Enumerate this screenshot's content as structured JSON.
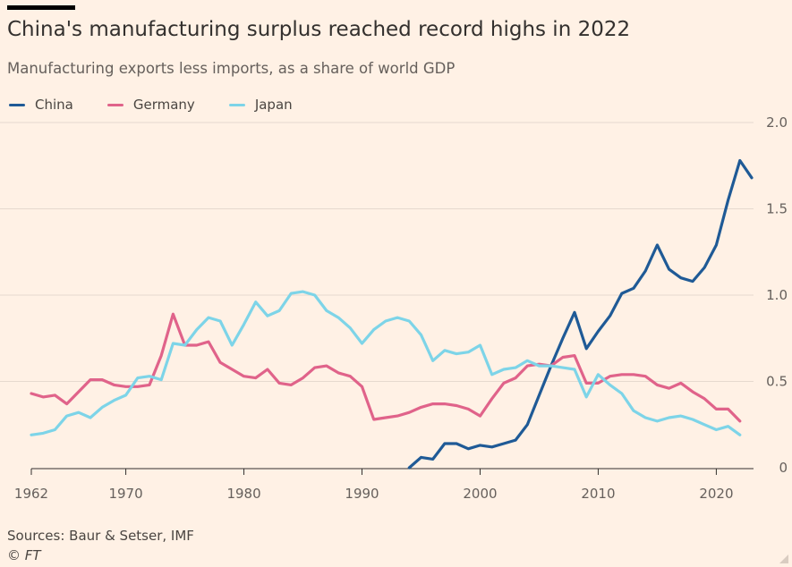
{
  "header": {
    "title": "China's manufacturing surplus reached record highs in 2022",
    "subtitle": "Manufacturing exports less imports, as a share of world GDP"
  },
  "footer": {
    "sources": "Sources: Baur & Setser, IMF",
    "credit": "© FT"
  },
  "colors": {
    "background": "#FFF1E5",
    "grid": "#E6D9CE",
    "axis": "#33302E",
    "china": "#1F5A96",
    "germany": "#E0638A",
    "japan": "#7DD4E8"
  },
  "chart_data": {
    "type": "line",
    "title": "China's manufacturing surplus reached record highs in 2022",
    "subtitle": "Manufacturing exports less imports, as a share of world GDP",
    "xlabel": "",
    "ylabel": "",
    "xlim": [
      1962,
      2023
    ],
    "ylim": [
      0,
      2.0
    ],
    "x_ticks": [
      1962,
      1970,
      1980,
      1990,
      2000,
      2010,
      2020
    ],
    "x_tick_labels": [
      "1962",
      "1970",
      "1980",
      "1990",
      "2000",
      "2010",
      "2020"
    ],
    "y_ticks": [
      0,
      0.5,
      1.0,
      1.5,
      2.0
    ],
    "y_tick_labels": [
      "0",
      "0.5",
      "1.0",
      "1.5",
      "2.0"
    ],
    "y_axis_side": "right",
    "grid": "horizontal",
    "legend": "top-left",
    "series": [
      {
        "name": "China",
        "color": "#1F5A96",
        "x": [
          1994,
          1995,
          1996,
          1997,
          1998,
          1999,
          2000,
          2001,
          2002,
          2003,
          2004,
          2005,
          2006,
          2007,
          2008,
          2009,
          2010,
          2011,
          2012,
          2013,
          2014,
          2015,
          2016,
          2017,
          2018,
          2019,
          2020,
          2021,
          2022,
          2023
        ],
        "values": [
          0.0,
          0.06,
          0.05,
          0.14,
          0.14,
          0.11,
          0.13,
          0.12,
          0.14,
          0.16,
          0.25,
          0.42,
          0.59,
          0.75,
          0.9,
          0.69,
          0.79,
          0.88,
          1.01,
          1.04,
          1.14,
          1.29,
          1.15,
          1.1,
          1.08,
          1.16,
          1.29,
          1.55,
          1.78,
          1.68
        ]
      },
      {
        "name": "Germany",
        "color": "#E0638A",
        "x": [
          1962,
          1963,
          1964,
          1965,
          1966,
          1967,
          1968,
          1969,
          1970,
          1971,
          1972,
          1973,
          1974,
          1975,
          1976,
          1977,
          1978,
          1979,
          1980,
          1981,
          1982,
          1983,
          1984,
          1985,
          1986,
          1987,
          1988,
          1989,
          1990,
          1991,
          1992,
          1993,
          1994,
          1995,
          1996,
          1997,
          1998,
          1999,
          2000,
          2001,
          2002,
          2003,
          2004,
          2005,
          2006,
          2007,
          2008,
          2009,
          2010,
          2011,
          2012,
          2013,
          2014,
          2015,
          2016,
          2017,
          2018,
          2019,
          2020,
          2021,
          2022
        ],
        "values": [
          0.43,
          0.41,
          0.42,
          0.37,
          0.44,
          0.51,
          0.51,
          0.48,
          0.47,
          0.47,
          0.48,
          0.65,
          0.89,
          0.71,
          0.71,
          0.73,
          0.61,
          0.57,
          0.53,
          0.52,
          0.57,
          0.49,
          0.48,
          0.52,
          0.58,
          0.59,
          0.55,
          0.53,
          0.47,
          0.28,
          0.29,
          0.3,
          0.32,
          0.35,
          0.37,
          0.37,
          0.36,
          0.34,
          0.3,
          0.4,
          0.49,
          0.52,
          0.59,
          0.6,
          0.59,
          0.64,
          0.65,
          0.49,
          0.49,
          0.53,
          0.54,
          0.54,
          0.53,
          0.48,
          0.46,
          0.49,
          0.44,
          0.4,
          0.34,
          0.34,
          0.27
        ]
      },
      {
        "name": "Japan",
        "color": "#7DD4E8",
        "x": [
          1962,
          1963,
          1964,
          1965,
          1966,
          1967,
          1968,
          1969,
          1970,
          1971,
          1972,
          1973,
          1974,
          1975,
          1976,
          1977,
          1978,
          1979,
          1980,
          1981,
          1982,
          1983,
          1984,
          1985,
          1986,
          1987,
          1988,
          1989,
          1990,
          1991,
          1992,
          1993,
          1994,
          1995,
          1996,
          1997,
          1998,
          1999,
          2000,
          2001,
          2002,
          2003,
          2004,
          2005,
          2006,
          2007,
          2008,
          2009,
          2010,
          2011,
          2012,
          2013,
          2014,
          2015,
          2016,
          2017,
          2018,
          2019,
          2020,
          2021,
          2022
        ],
        "values": [
          0.19,
          0.2,
          0.22,
          0.3,
          0.32,
          0.29,
          0.35,
          0.39,
          0.42,
          0.52,
          0.53,
          0.51,
          0.72,
          0.71,
          0.8,
          0.87,
          0.85,
          0.71,
          0.83,
          0.96,
          0.88,
          0.91,
          1.01,
          1.02,
          1.0,
          0.91,
          0.87,
          0.81,
          0.72,
          0.8,
          0.85,
          0.87,
          0.85,
          0.77,
          0.62,
          0.68,
          0.66,
          0.67,
          0.71,
          0.54,
          0.57,
          0.58,
          0.62,
          0.59,
          0.59,
          0.58,
          0.57,
          0.41,
          0.54,
          0.48,
          0.43,
          0.33,
          0.29,
          0.27,
          0.29,
          0.3,
          0.28,
          0.25,
          0.22,
          0.24,
          0.19
        ]
      }
    ]
  }
}
